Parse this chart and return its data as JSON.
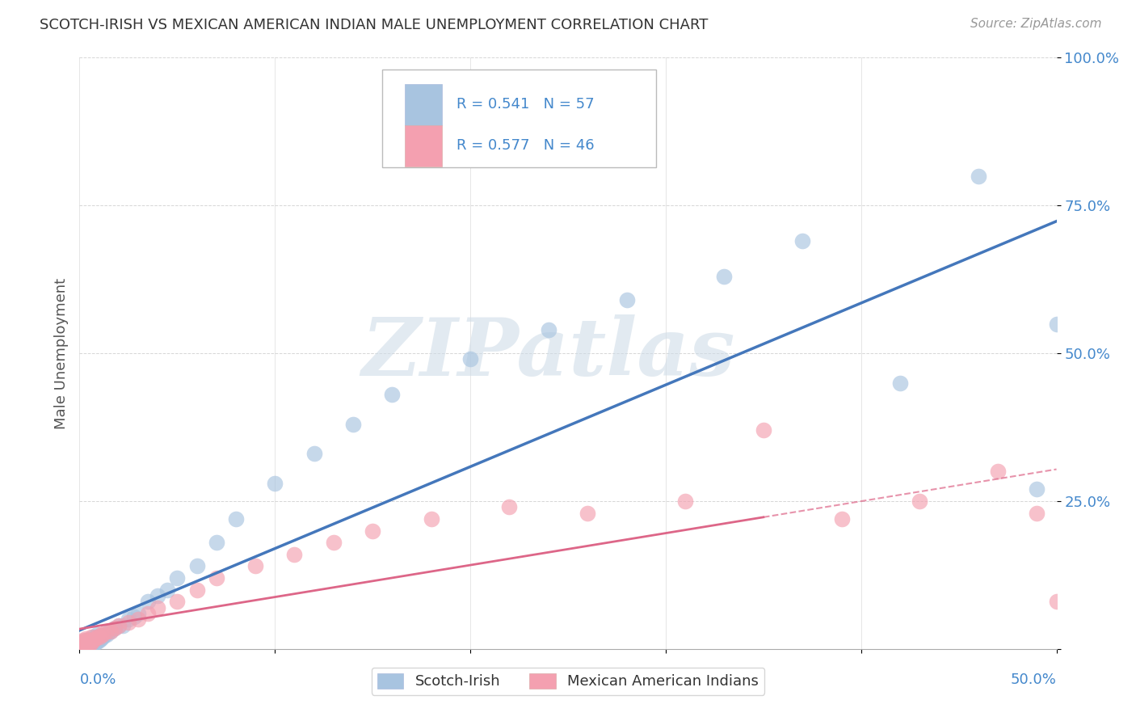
{
  "title": "SCOTCH-IRISH VS MEXICAN AMERICAN INDIAN MALE UNEMPLOYMENT CORRELATION CHART",
  "source": "Source: ZipAtlas.com",
  "ylabel": "Male Unemployment",
  "y_tick_labels": [
    "",
    "25.0%",
    "50.0%",
    "75.0%",
    "100.0%"
  ],
  "scotch_irish_color": "#a8c4e0",
  "mexican_color": "#f4a0b0",
  "scotch_irish_line_color": "#4477bb",
  "mexican_line_color": "#dd6688",
  "watermark_text": "ZIPatlas",
  "xlim": [
    0.0,
    0.5
  ],
  "ylim": [
    0.0,
    1.0
  ],
  "scotch_x": [
    0.001,
    0.001,
    0.001,
    0.002,
    0.002,
    0.002,
    0.003,
    0.003,
    0.003,
    0.003,
    0.004,
    0.004,
    0.004,
    0.005,
    0.005,
    0.005,
    0.006,
    0.006,
    0.007,
    0.007,
    0.008,
    0.008,
    0.009,
    0.009,
    0.01,
    0.011,
    0.012,
    0.013,
    0.014,
    0.015,
    0.016,
    0.018,
    0.02,
    0.022,
    0.025,
    0.028,
    0.03,
    0.035,
    0.04,
    0.045,
    0.05,
    0.06,
    0.07,
    0.08,
    0.1,
    0.12,
    0.14,
    0.16,
    0.2,
    0.24,
    0.28,
    0.33,
    0.37,
    0.42,
    0.46,
    0.49,
    0.5
  ],
  "scotch_y": [
    0.005,
    0.007,
    0.01,
    0.005,
    0.008,
    0.012,
    0.005,
    0.007,
    0.01,
    0.015,
    0.005,
    0.008,
    0.012,
    0.005,
    0.01,
    0.015,
    0.008,
    0.015,
    0.01,
    0.02,
    0.01,
    0.02,
    0.012,
    0.025,
    0.015,
    0.018,
    0.02,
    0.025,
    0.025,
    0.03,
    0.03,
    0.035,
    0.04,
    0.04,
    0.05,
    0.055,
    0.06,
    0.08,
    0.09,
    0.1,
    0.12,
    0.14,
    0.18,
    0.22,
    0.28,
    0.33,
    0.38,
    0.43,
    0.49,
    0.54,
    0.59,
    0.63,
    0.69,
    0.45,
    0.8,
    0.27,
    0.55
  ],
  "mexican_x": [
    0.001,
    0.001,
    0.001,
    0.002,
    0.002,
    0.002,
    0.003,
    0.003,
    0.003,
    0.004,
    0.004,
    0.005,
    0.005,
    0.006,
    0.006,
    0.007,
    0.008,
    0.009,
    0.01,
    0.011,
    0.012,
    0.014,
    0.016,
    0.018,
    0.02,
    0.025,
    0.03,
    0.035,
    0.04,
    0.05,
    0.06,
    0.07,
    0.09,
    0.11,
    0.13,
    0.15,
    0.18,
    0.22,
    0.26,
    0.31,
    0.35,
    0.39,
    0.43,
    0.47,
    0.49,
    0.5
  ],
  "mexican_y": [
    0.005,
    0.008,
    0.012,
    0.005,
    0.01,
    0.015,
    0.005,
    0.01,
    0.018,
    0.008,
    0.015,
    0.008,
    0.015,
    0.01,
    0.02,
    0.015,
    0.018,
    0.02,
    0.02,
    0.025,
    0.025,
    0.03,
    0.03,
    0.035,
    0.04,
    0.045,
    0.05,
    0.06,
    0.07,
    0.08,
    0.1,
    0.12,
    0.14,
    0.16,
    0.18,
    0.2,
    0.22,
    0.24,
    0.23,
    0.25,
    0.37,
    0.22,
    0.25,
    0.3,
    0.23,
    0.08
  ]
}
